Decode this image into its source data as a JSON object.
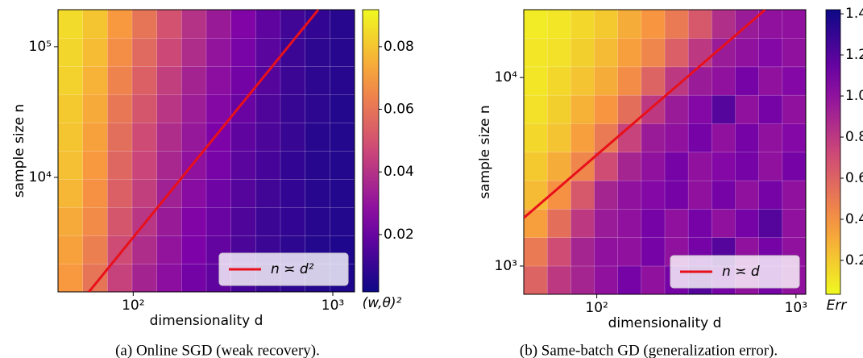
{
  "chart_data": [
    {
      "type": "heatmap",
      "caption": "(a) Online SGD (weak recovery).",
      "xlabel": "dimensionality d",
      "ylabel": "sample size n",
      "xscale": "log",
      "yscale": "log",
      "xlim": [
        42,
        1285
      ],
      "ylim": [
        1330,
        192000
      ],
      "xticks": [
        {
          "value": 100,
          "label": "10²"
        },
        {
          "value": 1000,
          "label": "10³"
        }
      ],
      "yticks": [
        {
          "value": 10000,
          "label": "10⁴"
        },
        {
          "value": 100000,
          "label": "10⁵"
        }
      ],
      "colormap": "plasma",
      "colormap_reversed": false,
      "grid": true,
      "colorbar": {
        "label": "(w,θ)²",
        "lim": [
          0.0017,
          0.0918
        ],
        "ticks": [
          0.02,
          0.04,
          0.06,
          0.08
        ]
      },
      "line": {
        "name": "n ≍ d²",
        "color": "#e8101a",
        "x": [
          60,
          846
        ],
        "y": [
          1330,
          192000
        ]
      },
      "legend": "lower right",
      "z": [
        [
          0.07,
          0.06,
          0.045,
          0.035,
          0.028,
          0.022,
          0.018,
          0.013,
          0.01,
          0.008,
          0.006,
          0.005
        ],
        [
          0.072,
          0.063,
          0.048,
          0.038,
          0.03,
          0.024,
          0.019,
          0.014,
          0.011,
          0.008,
          0.006,
          0.005
        ],
        [
          0.074,
          0.066,
          0.051,
          0.041,
          0.032,
          0.025,
          0.02,
          0.015,
          0.011,
          0.009,
          0.007,
          0.006
        ],
        [
          0.077,
          0.068,
          0.054,
          0.044,
          0.034,
          0.027,
          0.021,
          0.016,
          0.012,
          0.009,
          0.007,
          0.006
        ],
        [
          0.079,
          0.07,
          0.056,
          0.046,
          0.036,
          0.029,
          0.023,
          0.017,
          0.013,
          0.009,
          0.007,
          0.006
        ],
        [
          0.08,
          0.072,
          0.058,
          0.048,
          0.038,
          0.031,
          0.024,
          0.018,
          0.014,
          0.01,
          0.007,
          0.006
        ],
        [
          0.081,
          0.074,
          0.061,
          0.051,
          0.041,
          0.033,
          0.026,
          0.02,
          0.015,
          0.01,
          0.008,
          0.006
        ],
        [
          0.083,
          0.076,
          0.064,
          0.054,
          0.044,
          0.035,
          0.028,
          0.022,
          0.016,
          0.011,
          0.008,
          0.007
        ],
        [
          0.084,
          0.078,
          0.067,
          0.057,
          0.047,
          0.038,
          0.03,
          0.023,
          0.017,
          0.011,
          0.008,
          0.007
        ],
        [
          0.085,
          0.08,
          0.07,
          0.06,
          0.05,
          0.04,
          0.032,
          0.025,
          0.018,
          0.012,
          0.009,
          0.007
        ]
      ]
    },
    {
      "type": "heatmap",
      "caption": "(b) Same-batch GD (generalization error).",
      "xlabel": "dimensionality d",
      "ylabel": "sample size n",
      "xscale": "log",
      "yscale": "log",
      "xlim": [
        43,
        1120
      ],
      "ylim": [
        708,
        22900
      ],
      "xticks": [
        {
          "value": 100,
          "label": "10²"
        },
        {
          "value": 1000,
          "label": "10³"
        }
      ],
      "yticks": [
        {
          "value": 1000,
          "label": "10³"
        },
        {
          "value": 10000,
          "label": "10⁴"
        }
      ],
      "colormap": "plasma",
      "colormap_reversed": true,
      "grid": true,
      "colorbar": {
        "label": "Err",
        "lim": [
          0.035,
          1.42
        ],
        "ticks": [
          0.2,
          0.4,
          0.6,
          0.8,
          {
            "value": 1,
            "label": "1.0"
          },
          1.2,
          1.4
        ]
      },
      "line": {
        "name": "n ≍ d",
        "color": "#e8101a",
        "x": [
          43,
          701
        ],
        "y": [
          1800,
          22900
        ]
      },
      "legend": "lower right",
      "z": [
        [
          0.6,
          0.8,
          0.9,
          1.0,
          1.1,
          1.0,
          1.1,
          1.2,
          1.1,
          1.0,
          1.1,
          1.0
        ],
        [
          0.5,
          0.7,
          0.9,
          1.0,
          1.0,
          1.1,
          1.0,
          1.1,
          1.2,
          1.0,
          1.1,
          1.0
        ],
        [
          0.35,
          0.55,
          0.8,
          0.95,
          1.0,
          1.1,
          1.0,
          1.1,
          1.0,
          1.1,
          1.2,
          1.0
        ],
        [
          0.25,
          0.4,
          0.65,
          0.9,
          1.0,
          1.05,
          1.1,
          1.0,
          1.1,
          1.0,
          1.1,
          1.0
        ],
        [
          0.2,
          0.3,
          0.45,
          0.7,
          0.9,
          1.0,
          1.1,
          1.0,
          1.05,
          1.1,
          1.0,
          1.1
        ],
        [
          0.15,
          0.22,
          0.35,
          0.5,
          0.75,
          0.95,
          1.0,
          1.1,
          1.0,
          1.1,
          1.0,
          1.05
        ],
        [
          0.12,
          0.18,
          0.28,
          0.38,
          0.55,
          0.8,
          0.95,
          1.05,
          1.2,
          1.0,
          1.1,
          1.0
        ],
        [
          0.1,
          0.15,
          0.22,
          0.3,
          0.42,
          0.6,
          0.8,
          0.95,
          1.0,
          1.1,
          1.0,
          1.05
        ],
        [
          0.1,
          0.12,
          0.18,
          0.25,
          0.35,
          0.45,
          0.62,
          0.8,
          0.95,
          1.0,
          1.05,
          1.0
        ],
        [
          0.08,
          0.1,
          0.15,
          0.2,
          0.3,
          0.38,
          0.5,
          0.65,
          0.85,
          0.95,
          1.0,
          1.0
        ]
      ]
    }
  ]
}
